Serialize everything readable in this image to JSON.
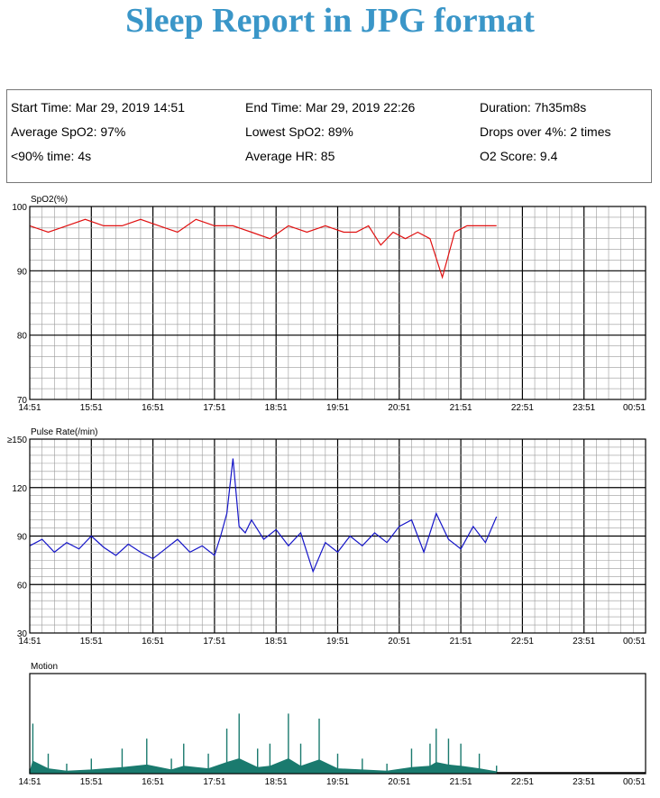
{
  "header": {
    "title": "Sleep Report in JPG format"
  },
  "summary": {
    "start_time": "Start Time: Mar 29, 2019 14:51",
    "end_time": "End Time: Mar 29, 2019 22:26",
    "duration": "Duration: 7h35m8s",
    "avg_spo2": "Average SpO2: 97%",
    "lowest_spo2": "Lowest SpO2: 89%",
    "drops": "Drops over 4%: 2 times",
    "below90": "<90% time: 4s",
    "avg_hr": "Average HR: 85",
    "o2_score": "O2 Score: 9.4"
  },
  "colors": {
    "spo2": "#e01010",
    "pulse": "#1515c8",
    "motion": "#1a7a6e",
    "title": "#3a96c8"
  },
  "chart_data": [
    {
      "type": "line",
      "title": "SpO2(%)",
      "xlabel": "",
      "ylabel": "",
      "x_ticks": [
        "14:51",
        "15:51",
        "16:51",
        "17:51",
        "18:51",
        "19:51",
        "20:51",
        "21:51",
        "22:51",
        "23:51",
        "00:51"
      ],
      "xlim_hours": [
        0,
        10
      ],
      "y_ticks": [
        "100",
        "90",
        "80",
        "70"
      ],
      "ylim": [
        70,
        100
      ],
      "grid": true,
      "series": [
        {
          "x_hours": [
            0,
            0.3,
            0.6,
            0.9,
            1.2,
            1.5,
            1.8,
            2.1,
            2.4,
            2.7,
            3.0,
            3.3,
            3.6,
            3.9,
            4.2,
            4.5,
            4.8,
            5.1,
            5.3,
            5.5,
            5.7,
            5.9,
            6.1,
            6.3,
            6.5,
            6.7,
            6.9,
            7.1,
            7.3,
            7.58
          ],
          "values": [
            97,
            96,
            97,
            98,
            97,
            97,
            98,
            97,
            96,
            98,
            97,
            97,
            96,
            95,
            97,
            96,
            97,
            96,
            96,
            97,
            94,
            96,
            95,
            96,
            95,
            89,
            96,
            97,
            97,
            97
          ]
        }
      ]
    },
    {
      "type": "line",
      "title": "Pulse Rate(/min)",
      "xlabel": "",
      "ylabel": "",
      "x_ticks": [
        "14:51",
        "15:51",
        "16:51",
        "17:51",
        "18:51",
        "19:51",
        "20:51",
        "21:51",
        "22:51",
        "23:51",
        "00:51"
      ],
      "xlim_hours": [
        0,
        10
      ],
      "y_ticks": [
        "≥150",
        "120",
        "90",
        "60",
        "30"
      ],
      "ylim": [
        30,
        150
      ],
      "grid": true,
      "series": [
        {
          "x_hours": [
            0,
            0.2,
            0.4,
            0.6,
            0.8,
            1.0,
            1.2,
            1.4,
            1.6,
            1.8,
            2.0,
            2.2,
            2.4,
            2.6,
            2.8,
            3.0,
            3.1,
            3.2,
            3.3,
            3.4,
            3.5,
            3.6,
            3.8,
            4.0,
            4.2,
            4.4,
            4.6,
            4.8,
            5.0,
            5.2,
            5.4,
            5.6,
            5.8,
            6.0,
            6.2,
            6.4,
            6.6,
            6.8,
            7.0,
            7.2,
            7.4,
            7.58
          ],
          "values": [
            84,
            88,
            80,
            86,
            82,
            90,
            83,
            78,
            85,
            80,
            76,
            82,
            88,
            80,
            84,
            78,
            90,
            104,
            138,
            96,
            92,
            100,
            88,
            94,
            84,
            92,
            68,
            86,
            80,
            90,
            84,
            92,
            86,
            96,
            100,
            80,
            104,
            88,
            82,
            96,
            86,
            102
          ]
        }
      ]
    },
    {
      "type": "area",
      "title": "Motion",
      "xlabel": "",
      "ylabel": "",
      "x_ticks": [
        "14:51",
        "15:51",
        "16:51",
        "17:51",
        "18:51",
        "19:51",
        "20:51",
        "21:51",
        "22:51",
        "23:51",
        "00:51"
      ],
      "xlim_hours": [
        0,
        10
      ],
      "ylim": [
        0,
        1
      ],
      "grid": false,
      "series": [
        {
          "x_hours": [
            0,
            0.05,
            0.3,
            0.6,
            1.0,
            1.5,
            1.9,
            2.3,
            2.5,
            2.9,
            3.2,
            3.4,
            3.7,
            3.9,
            4.2,
            4.4,
            4.7,
            5.0,
            5.4,
            5.8,
            6.2,
            6.5,
            6.6,
            6.8,
            7.0,
            7.3,
            7.58
          ],
          "values": [
            0.05,
            0.5,
            0.2,
            0.1,
            0.15,
            0.25,
            0.35,
            0.15,
            0.3,
            0.2,
            0.45,
            0.6,
            0.25,
            0.3,
            0.6,
            0.3,
            0.55,
            0.2,
            0.15,
            0.1,
            0.25,
            0.3,
            0.45,
            0.35,
            0.3,
            0.2,
            0.08
          ]
        }
      ]
    }
  ]
}
